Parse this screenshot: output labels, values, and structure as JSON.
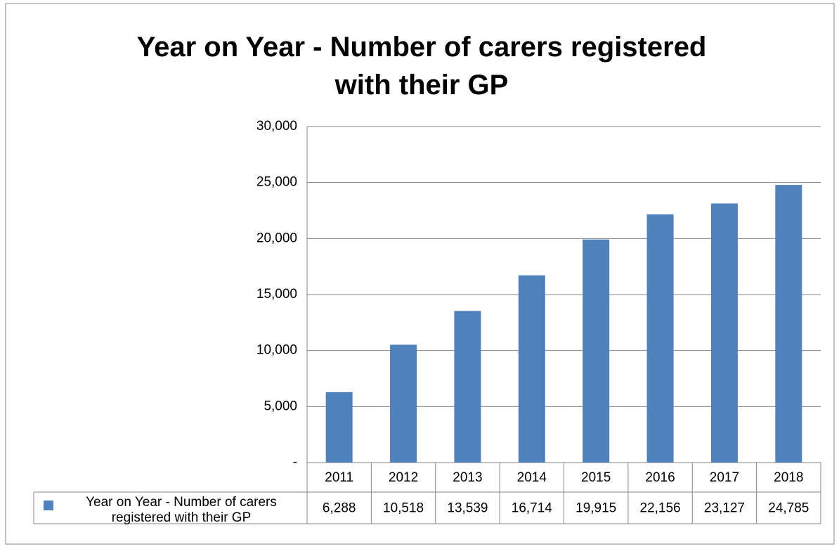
{
  "chart_data": {
    "type": "bar",
    "title": "Year on Year - Number of carers registered with their GP",
    "categories": [
      "2011",
      "2012",
      "2013",
      "2014",
      "2015",
      "2016",
      "2017",
      "2018"
    ],
    "series": [
      {
        "name": "Year on Year - Number of carers registered with their GP",
        "color": "#4f81bd",
        "values": [
          6288,
          10518,
          13539,
          16714,
          19915,
          22156,
          23127,
          24785
        ],
        "value_labels": [
          "6,288",
          "10,518",
          "13,539",
          "16,714",
          "19,915",
          "22,156",
          "23,127",
          "24,785"
        ]
      }
    ],
    "ylim": [
      0,
      30000
    ],
    "yticks": [
      {
        "value": 0,
        "label": "-"
      },
      {
        "value": 5000,
        "label": "5,000"
      },
      {
        "value": 10000,
        "label": "10,000"
      },
      {
        "value": 15000,
        "label": "15,000"
      },
      {
        "value": 20000,
        "label": "20,000"
      },
      {
        "value": 25000,
        "label": "25,000"
      },
      {
        "value": 30000,
        "label": "30,000"
      }
    ],
    "grid": true
  }
}
